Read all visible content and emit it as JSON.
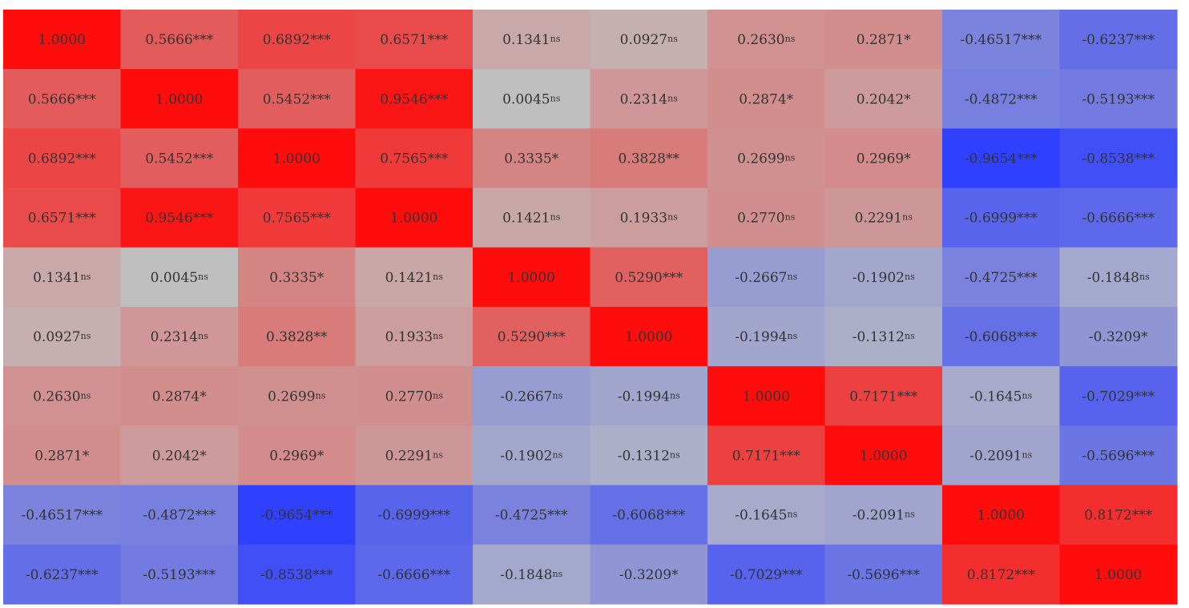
{
  "chart_data": {
    "type": "heatmap",
    "title": "",
    "color_scale": {
      "negative": "#2b3cff",
      "neutral": "#c0c0c0",
      "positive": "#ff0d0d",
      "range": [
        -1,
        1
      ]
    },
    "values": [
      [
        1.0,
        0.5666,
        0.6892,
        0.6571,
        0.1341,
        0.0927,
        0.263,
        0.2871,
        -0.46517,
        -0.6237
      ],
      [
        0.5666,
        1.0,
        0.5452,
        0.9546,
        0.0045,
        0.2314,
        0.2874,
        0.2042,
        -0.4872,
        -0.5193
      ],
      [
        0.6892,
        0.5452,
        1.0,
        0.7565,
        0.3335,
        0.3828,
        0.2699,
        0.2969,
        -0.9654,
        -0.8538
      ],
      [
        0.6571,
        0.9546,
        0.7565,
        1.0,
        0.1421,
        0.1933,
        0.277,
        0.2291,
        -0.6999,
        -0.6666
      ],
      [
        0.1341,
        0.0045,
        0.3335,
        0.1421,
        1.0,
        0.529,
        -0.2667,
        -0.1902,
        -0.4725,
        -0.1848
      ],
      [
        0.0927,
        0.2314,
        0.3828,
        0.1933,
        0.529,
        1.0,
        -0.1994,
        -0.1312,
        -0.6068,
        -0.3209
      ],
      [
        0.263,
        0.2874,
        0.2699,
        0.277,
        -0.2667,
        -0.1994,
        1.0,
        0.7171,
        -0.1645,
        -0.7029
      ],
      [
        0.2871,
        0.2042,
        0.2969,
        0.2291,
        -0.1902,
        -0.1312,
        0.7171,
        1.0,
        -0.2091,
        -0.5696
      ],
      [
        -0.46517,
        -0.4872,
        -0.9654,
        -0.6999,
        -0.4725,
        -0.6068,
        -0.1645,
        -0.2091,
        1.0,
        0.8172
      ],
      [
        -0.6237,
        -0.5193,
        -0.8538,
        -0.6666,
        -0.1848,
        -0.3209,
        -0.7029,
        -0.5696,
        0.8172,
        1.0
      ]
    ],
    "labels": [
      [
        "1.0000",
        "0.5666***",
        "0.6892***",
        "0.6571***",
        "0.1341ns",
        "0.0927ns",
        "0.2630ns",
        "0.2871*",
        "-0.46517***",
        "-0.6237***"
      ],
      [
        "0.5666***",
        "1.0000",
        "0.5452***",
        "0.9546***",
        "0.0045ns",
        "0.2314ns",
        "0.2874*",
        "0.2042*",
        "-0.4872***",
        "-0.5193***"
      ],
      [
        "0.6892***",
        "0.5452***",
        "1.0000",
        "0.7565***",
        "0.3335*",
        "0.3828**",
        "0.2699ns",
        "0.2969*",
        "-0.9654***",
        "-0.8538***"
      ],
      [
        "0.6571***",
        "0.9546***",
        "0.7565***",
        "1.0000",
        "0.1421ns",
        "0.1933ns",
        "0.2770ns",
        "0.2291ns",
        "-0.6999***",
        "-0.6666***"
      ],
      [
        "0.1341ns",
        "0.0045ns",
        "0.3335*",
        "0.1421ns",
        "1.0000",
        "0.5290***",
        "-0.2667ns",
        "-0.1902ns",
        "-0.4725***",
        "-0.1848ns"
      ],
      [
        "0.0927ns",
        "0.2314ns",
        "0.3828**",
        "0.1933ns",
        "0.5290***",
        "1.0000",
        "-0.1994ns",
        "-0.1312ns",
        "-0.6068***",
        "-0.3209*"
      ],
      [
        "0.2630ns",
        "0.2874*",
        "0.2699ns",
        "0.2770ns",
        "-0.2667ns",
        "-0.1994ns",
        "1.0000",
        "0.7171***",
        "-0.1645ns",
        "-0.7029***"
      ],
      [
        "0.2871*",
        "0.2042*",
        "0.2969*",
        "0.2291ns",
        "-0.1902ns",
        "-0.1312ns",
        "0.7171***",
        "1.0000",
        "-0.2091ns",
        "-0.5696***"
      ],
      [
        "-0.46517***",
        "-0.4872***",
        "-0.9654***",
        "-0.6999***",
        "-0.4725***",
        "-0.6068***",
        "-0.1645ns",
        "-0.2091ns",
        "1.0000",
        "0.8172***"
      ],
      [
        "-0.6237***",
        "-0.5193***",
        "-0.8538***",
        "-0.6666***",
        "-0.1848ns",
        "-0.3209*",
        "-0.7029***",
        "-0.5696***",
        "0.8172***",
        "1.0000"
      ]
    ]
  }
}
